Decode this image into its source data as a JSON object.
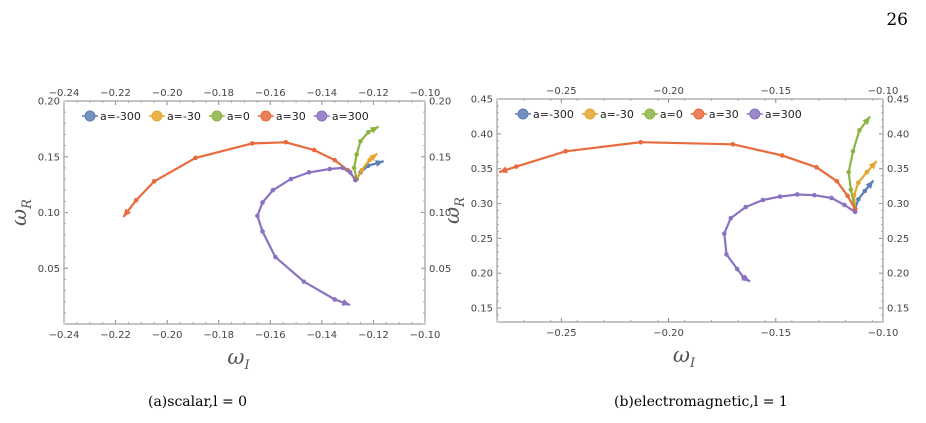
{
  "page_number": "26",
  "captions": [
    "(a)scalar,l = 0",
    "(b)electromagnetic,l = 1"
  ],
  "colors": {
    "a=-300": "#5b7eb5",
    "a=-30": "#e3a52e",
    "a=0": "#8cb443",
    "a=30": "#e86a3d",
    "a=300": "#8a72c1"
  },
  "chart_data": [
    {
      "type": "line",
      "xlabel": "ω",
      "xlabel_sub": "I",
      "ylabel": "ω",
      "ylabel_sub": "R",
      "xlim": [
        -0.24,
        -0.1
      ],
      "ylim": [
        0.0,
        0.2
      ],
      "xticks": [
        -0.24,
        -0.22,
        -0.2,
        -0.18,
        -0.16,
        -0.14,
        -0.12,
        -0.1
      ],
      "xticklabels": [
        "−0.24",
        "−0.22",
        "−0.20",
        "−0.18",
        "−0.16",
        "−0.14",
        "−0.12",
        "−0.10"
      ],
      "yticks": [
        0.05,
        0.1,
        0.15,
        0.2
      ],
      "yticklabels": [
        "0.05",
        "0.10",
        "0.15",
        "0.20"
      ],
      "grid": false,
      "legend": "top-left",
      "series": [
        {
          "name": "a=-300",
          "x": [
            -0.1265,
            -0.125,
            -0.122,
            -0.116
          ],
          "y": [
            0.13,
            0.136,
            0.142,
            0.146
          ]
        },
        {
          "name": "a=-30",
          "x": [
            -0.1265,
            -0.1245,
            -0.1215,
            -0.1185
          ],
          "y": [
            0.13,
            0.138,
            0.147,
            0.153
          ]
        },
        {
          "name": "a=0",
          "x": [
            -0.1265,
            -0.1275,
            -0.1265,
            -0.125,
            -0.122,
            -0.118
          ],
          "y": [
            0.13,
            0.14,
            0.152,
            0.164,
            0.172,
            0.177
          ]
        },
        {
          "name": "a=30",
          "x": [
            -0.127,
            -0.13,
            -0.135,
            -0.143,
            -0.154,
            -0.167,
            -0.189,
            -0.205,
            -0.212,
            -0.217
          ],
          "y": [
            0.13,
            0.138,
            0.147,
            0.156,
            0.163,
            0.162,
            0.149,
            0.128,
            0.111,
            0.096
          ]
        },
        {
          "name": "a=300",
          "x": [
            -0.127,
            -0.129,
            -0.132,
            -0.137,
            -0.145,
            -0.152,
            -0.159,
            -0.163,
            -0.165,
            -0.163,
            -0.158,
            -0.147,
            -0.135,
            -0.129
          ],
          "y": [
            0.129,
            0.136,
            0.14,
            0.139,
            0.136,
            0.13,
            0.12,
            0.109,
            0.097,
            0.083,
            0.06,
            0.038,
            0.022,
            0.017
          ]
        }
      ]
    },
    {
      "type": "line",
      "xlabel": "ω",
      "xlabel_sub": "I",
      "ylabel": "ω",
      "ylabel_sub": "R",
      "xlim": [
        -0.28,
        -0.1
      ],
      "ylim": [
        0.13,
        0.45
      ],
      "xticks": [
        -0.25,
        -0.2,
        -0.15,
        -0.1
      ],
      "xticklabels": [
        "−0.25",
        "−0.20",
        "−0.15",
        "−0.10"
      ],
      "yticks": [
        0.15,
        0.2,
        0.25,
        0.3,
        0.35,
        0.4,
        0.45
      ],
      "yticklabels": [
        "0.15",
        "0.20",
        "0.25",
        "0.30",
        "0.35",
        "0.40",
        "0.45"
      ],
      "grid": false,
      "legend": "top-left",
      "series": [
        {
          "name": "a=-300",
          "x": [
            -0.113,
            -0.1115,
            -0.1085,
            -0.1045
          ],
          "y": [
            0.292,
            0.306,
            0.318,
            0.333
          ]
        },
        {
          "name": "a=-30",
          "x": [
            -0.113,
            -0.1135,
            -0.1115,
            -0.1075,
            -0.103
          ],
          "y": [
            0.292,
            0.312,
            0.33,
            0.345,
            0.361
          ]
        },
        {
          "name": "a=0",
          "x": [
            -0.113,
            -0.115,
            -0.116,
            -0.114,
            -0.111,
            -0.106
          ],
          "y": [
            0.292,
            0.32,
            0.345,
            0.375,
            0.405,
            0.425
          ]
        },
        {
          "name": "a=30",
          "x": [
            -0.113,
            -0.1165,
            -0.1215,
            -0.131,
            -0.147,
            -0.17,
            -0.213,
            -0.248,
            -0.271,
            -0.279
          ],
          "y": [
            0.292,
            0.311,
            0.332,
            0.352,
            0.369,
            0.385,
            0.388,
            0.375,
            0.353,
            0.345
          ]
        },
        {
          "name": "a=300",
          "x": [
            -0.113,
            -0.118,
            -0.124,
            -0.132,
            -0.14,
            -0.148,
            -0.156,
            -0.164,
            -0.171,
            -0.174,
            -0.173,
            -0.168,
            -0.165,
            -0.162
          ],
          "y": [
            0.288,
            0.298,
            0.308,
            0.312,
            0.313,
            0.31,
            0.305,
            0.295,
            0.279,
            0.257,
            0.227,
            0.206,
            0.194,
            0.188
          ]
        }
      ]
    }
  ]
}
